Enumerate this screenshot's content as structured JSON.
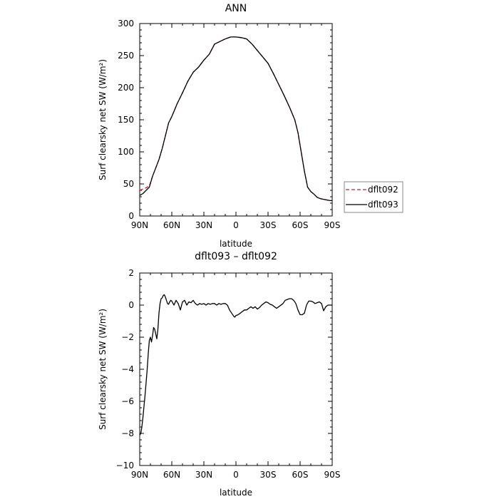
{
  "chart_data": [
    {
      "type": "line",
      "title": "ANN",
      "xlabel": "latitude",
      "ylabel": "Surf clearsky net SW (W/m²)",
      "xlim": [
        90,
        -90
      ],
      "ylim": [
        0,
        300
      ],
      "xticks": [
        90,
        60,
        30,
        0,
        -30,
        -60,
        -90
      ],
      "xticklabels": [
        "90N",
        "60N",
        "30N",
        "0",
        "30S",
        "60S",
        "90S"
      ],
      "yticks": [
        0,
        50,
        100,
        150,
        200,
        250,
        300
      ],
      "yticklabels": [
        "0",
        "50",
        "100",
        "150",
        "200",
        "250",
        "300"
      ],
      "legend_position": "right",
      "series": [
        {
          "name": "dflt092",
          "color": "#cc2222",
          "style": "dashed",
          "x": [
            90,
            87,
            84,
            81,
            78,
            75,
            72,
            69,
            66,
            63,
            60,
            55,
            50,
            45,
            40,
            35,
            30,
            25,
            20,
            15,
            10,
            5,
            0,
            -5,
            -10,
            -15,
            -20,
            -25,
            -30,
            -35,
            -40,
            -45,
            -50,
            -55,
            -58,
            -61,
            -64,
            -67,
            -70,
            -73,
            -76,
            -79,
            -82,
            -85,
            -88,
            -90
          ],
          "values": [
            40,
            42,
            44,
            47,
            62,
            75,
            88,
            105,
            125,
            145,
            155,
            175,
            192,
            210,
            224,
            232,
            243,
            252,
            268,
            272,
            276,
            279,
            279,
            278,
            276,
            268,
            258,
            248,
            238,
            222,
            205,
            188,
            170,
            150,
            130,
            100,
            70,
            45,
            38,
            34,
            29,
            27,
            26,
            25,
            24,
            24
          ]
        },
        {
          "name": "dflt093",
          "color": "#000000",
          "style": "solid",
          "x": [
            90,
            87,
            84,
            81,
            78,
            75,
            72,
            69,
            66,
            63,
            60,
            55,
            50,
            45,
            40,
            35,
            30,
            25,
            20,
            15,
            10,
            5,
            0,
            -5,
            -10,
            -15,
            -20,
            -25,
            -30,
            -35,
            -40,
            -45,
            -50,
            -55,
            -58,
            -61,
            -64,
            -67,
            -70,
            -73,
            -76,
            -79,
            -82,
            -85,
            -88,
            -90
          ],
          "values": [
            32,
            35,
            40,
            45,
            62,
            75,
            88,
            105,
            125,
            145,
            155,
            175,
            192,
            210,
            224,
            232,
            243,
            252,
            268,
            272,
            276,
            279,
            279,
            278,
            276,
            268,
            258,
            248,
            238,
            222,
            205,
            188,
            170,
            150,
            130,
            100,
            70,
            45,
            38,
            34,
            29,
            27,
            26,
            25,
            24,
            24
          ]
        }
      ]
    },
    {
      "type": "line",
      "title": "dflt093 – dflt092",
      "xlabel": "latitude",
      "ylabel": "Surf clearsky net SW (W/m²)",
      "xlim": [
        90,
        -90
      ],
      "ylim": [
        -10,
        2
      ],
      "xticks": [
        90,
        60,
        30,
        0,
        -30,
        -60,
        -90
      ],
      "xticklabels": [
        "90N",
        "60N",
        "30N",
        "0",
        "30S",
        "60S",
        "90S"
      ],
      "yticks": [
        -10,
        -8,
        -6,
        -4,
        -2,
        0,
        2
      ],
      "yticklabels": [
        "−10",
        "−8",
        "−6",
        "−4",
        "−2",
        "0",
        "2"
      ],
      "series": [
        {
          "name": "",
          "color": "#000000",
          "style": "solid",
          "x": [
            90,
            89,
            88,
            87,
            86,
            85,
            84,
            83,
            82,
            81,
            80,
            79,
            78,
            77,
            76,
            75,
            74,
            73,
            72,
            71,
            70,
            69,
            68,
            67,
            66,
            65,
            64,
            63,
            62,
            61,
            60,
            58,
            56,
            54,
            52,
            50,
            48,
            46,
            44,
            42,
            40,
            38,
            36,
            34,
            32,
            30,
            28,
            26,
            24,
            22,
            20,
            18,
            16,
            14,
            12,
            10,
            8,
            6,
            4,
            2,
            1,
            0,
            -2,
            -4,
            -6,
            -8,
            -10,
            -12,
            -14,
            -16,
            -18,
            -20,
            -22,
            -24,
            -26,
            -28,
            -30,
            -32,
            -34,
            -36,
            -38,
            -40,
            -42,
            -44,
            -46,
            -48,
            -50,
            -52,
            -54,
            -56,
            -58,
            -60,
            -62,
            -64,
            -66,
            -68,
            -70,
            -72,
            -74,
            -76,
            -78,
            -80,
            -82,
            -84,
            -86,
            -88,
            -90
          ],
          "values": [
            -8.1,
            -8.0,
            -7.6,
            -7.0,
            -6.3,
            -5.6,
            -4.8,
            -4.0,
            -3.0,
            -2.2,
            -2.0,
            -2.3,
            -1.9,
            -1.4,
            -1.5,
            -1.8,
            -2.1,
            -1.5,
            -0.5,
            0.1,
            0.4,
            0.45,
            0.6,
            0.65,
            0.5,
            0.3,
            0.1,
            0.05,
            0.2,
            0.3,
            0.25,
            0.0,
            0.3,
            0.1,
            -0.3,
            0.2,
            0.3,
            0.0,
            0.2,
            0.15,
            0.3,
            0.1,
            0.0,
            0.1,
            0.05,
            0.1,
            0.0,
            0.1,
            0.05,
            0.1,
            0.1,
            0.0,
            0.1,
            0.05,
            0.1,
            0.1,
            0.0,
            -0.3,
            -0.5,
            -0.7,
            -0.75,
            -0.65,
            -0.6,
            -0.5,
            -0.4,
            -0.3,
            -0.3,
            -0.2,
            -0.1,
            -0.2,
            -0.1,
            -0.25,
            -0.15,
            0.0,
            0.1,
            0.2,
            0.15,
            0.05,
            0.0,
            -0.1,
            -0.2,
            -0.1,
            0.0,
            0.1,
            0.3,
            0.35,
            0.4,
            0.4,
            0.3,
            0.1,
            -0.3,
            -0.6,
            -0.6,
            -0.5,
            0.0,
            0.25,
            0.25,
            0.2,
            0.1,
            0.15,
            0.2,
            0.1,
            -0.35,
            -0.1,
            0.0,
            0.0,
            0.0
          ]
        }
      ]
    }
  ]
}
